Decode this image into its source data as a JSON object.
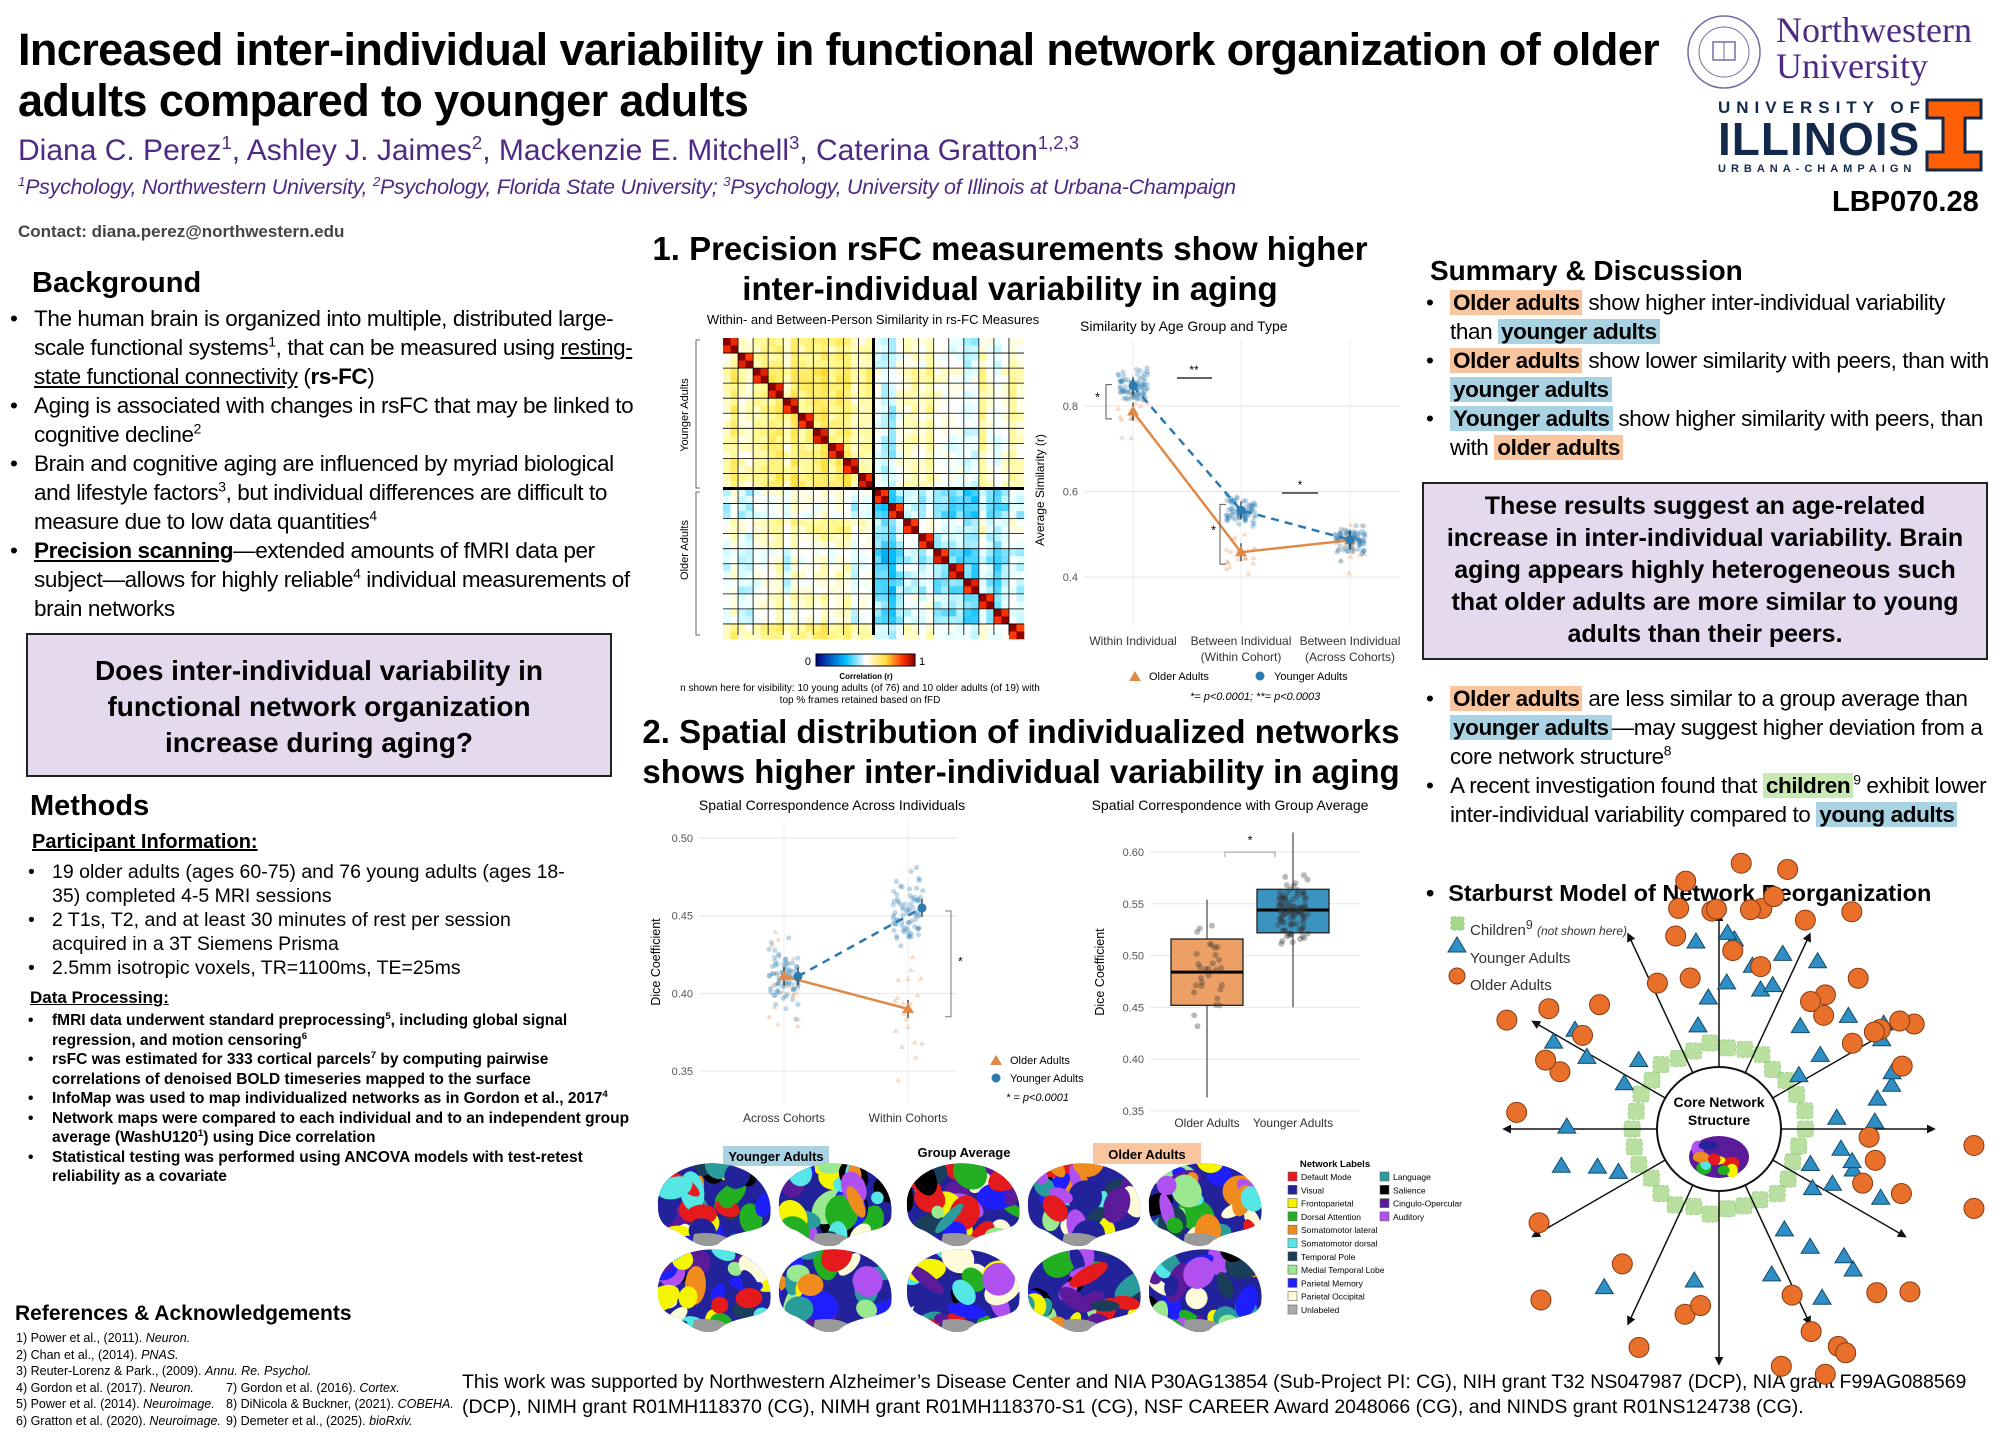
{
  "header": {
    "title_lines": [
      "Increased inter-individual variability in functional network organization of older",
      "adults compared to younger adults"
    ],
    "authors": [
      {
        "t": "Diana C. Perez"
      },
      {
        "t": "1",
        "s": "sup"
      },
      {
        "t": ", Ashley J. Jaimes"
      },
      {
        "t": "2",
        "s": "sup"
      },
      {
        "t": ", Mackenzie E. Mitchell"
      },
      {
        "t": "3",
        "s": "sup"
      },
      {
        "t": ", Caterina Gratton"
      },
      {
        "t": "1,2,3",
        "s": "sup"
      }
    ],
    "affiliations": [
      {
        "t": "1",
        "s": "sup"
      },
      {
        "t": "Psychology, Northwestern University, "
      },
      {
        "t": "2",
        "s": "sup"
      },
      {
        "t": "Psychology, Florida State University; "
      },
      {
        "t": "3",
        "s": "sup"
      },
      {
        "t": "Psychology, University of Illinois at Urbana-Champaign"
      }
    ],
    "contact": "Contact: diana.perez@northwestern.edu",
    "poster_id": "LBP070.28",
    "logos": {
      "northwestern": "Northwestern University",
      "northwestern_line1": "Northwestern",
      "northwestern_line2": "University",
      "illinois_top": "UNIVERSITY OF",
      "illinois_main": "ILLINOIS",
      "illinois_bottom": "URBANA-CHAMPAIGN",
      "colors": {
        "northwestern": "#4e2a84",
        "illinois_blue": "#13294b",
        "illinois_orange": "#ff5f05"
      }
    }
  },
  "background": {
    "heading": "Background",
    "bullets": [
      [
        {
          "t": "The human brain is organized into multiple, distributed large-scale functional systems"
        },
        {
          "t": "1",
          "s": "sup"
        },
        {
          "t": ", that can be measured using "
        },
        {
          "t": "resting-state functional connectivity",
          "s": "u"
        },
        {
          "t": " ("
        },
        {
          "t": "rs-FC",
          "s": "b"
        },
        {
          "t": ")"
        }
      ],
      [
        {
          "t": "Aging is associated with changes in rsFC that may be linked to cognitive decline"
        },
        {
          "t": "2",
          "s": "sup"
        }
      ],
      [
        {
          "t": "Brain and cognitive aging are influenced by myriad biological and lifestyle factors"
        },
        {
          "t": "3",
          "s": "sup"
        },
        {
          "t": ", but individual differences are difficult to measure due to low data quantities"
        },
        {
          "t": "4",
          "s": "sup"
        }
      ],
      [
        {
          "t": "Precision scanning",
          "s": "bu"
        },
        {
          "t": "—extended amounts of fMRI data per subject—allows for highly reliable"
        },
        {
          "t": "4",
          "s": "sup"
        },
        {
          "t": " individual measurements of brain networks"
        }
      ]
    ],
    "question": "Does inter-individual variability in functional network organization increase during aging?"
  },
  "methods": {
    "heading": "Methods",
    "participant_heading": "Participant Information:",
    "participant_bullets": [
      [
        {
          "t": "19 older adults (ages 60-75) and 76 young adults (ages 18-35) completed 4-5 MRI sessions"
        }
      ],
      [
        {
          "t": "2 T1s, T2, and at least 30 minutes of rest per session acquired in a 3T Siemens Prisma"
        }
      ],
      [
        {
          "t": "2.5mm isotropic voxels, TR=1100ms, TE=25ms"
        }
      ]
    ],
    "processing_heading": "Data Processing:",
    "processing_bullets": [
      [
        {
          "t": "fMRI data underwent standard preprocessing"
        },
        {
          "t": "5",
          "s": "sup"
        },
        {
          "t": ", including global signal regression, and motion censoring"
        },
        {
          "t": "6",
          "s": "sup"
        }
      ],
      [
        {
          "t": "rsFC was estimated for 333 cortical parcels"
        },
        {
          "t": "7",
          "s": "sup"
        },
        {
          "t": " by computing pairwise correlations of denoised BOLD timeseries mapped to the surface"
        }
      ],
      [
        {
          "t": "InfoMap was used to map individualized networks as in Gordon et al., 2017"
        },
        {
          "t": "4",
          "s": "sup"
        }
      ],
      [
        {
          "t": "Network maps were compared to each individual and to an independent group average (WashU120"
        },
        {
          "t": "1",
          "s": "sup"
        },
        {
          "t": ") using Dice correlation"
        }
      ],
      [
        {
          "t": "Statistical testing was performed using ANCOVA models with test-retest reliability as a covariate"
        }
      ]
    ]
  },
  "references": {
    "heading": "References & Acknowledgements",
    "col1": [
      [
        {
          "t": "1) Power et al., (2011). "
        },
        {
          "t": "Neuron.",
          "s": "i"
        }
      ],
      [
        {
          "t": "2) Chan et al., (2014). "
        },
        {
          "t": "PNAS.",
          "s": "i"
        }
      ],
      [
        {
          "t": "3) Reuter-Lorenz & Park., (2009). "
        },
        {
          "t": "Annu. Re. Psychol.",
          "s": "i"
        }
      ],
      [
        {
          "t": "4) Gordon et al. (2017). "
        },
        {
          "t": "Neuron.",
          "s": "i"
        }
      ],
      [
        {
          "t": "5) Power et al. (2014). "
        },
        {
          "t": "Neuroimage.",
          "s": "i"
        }
      ],
      [
        {
          "t": "6) Gratton et al. (2020). "
        },
        {
          "t": "Neuroimage.",
          "s": "i"
        }
      ]
    ],
    "col2": [
      [
        {
          "t": "7) Gordon et al. (2016). "
        },
        {
          "t": "Cortex.",
          "s": "i"
        }
      ],
      [
        {
          "t": "8) DiNicola & Buckner, (2021). "
        },
        {
          "t": "COBEHA.",
          "s": "i"
        }
      ],
      [
        {
          "t": "9) Demeter et al., (2025). "
        },
        {
          "t": "bioRxiv.",
          "s": "i"
        }
      ]
    ],
    "acknowledgement": "This work was supported by Northwestern Alzheimer’s Disease Center and NIA P30AG13854 (Sub-Project PI: CG), NIH grant T32 NS047987 (DCP), NIA grant F99AG088569 (DCP), NIMH grant R01MH118370 (CG), NIMH grant R01MH118370-S1 (CG), NSF CAREER Award 2048066 (CG), and NINDS grant R01NS124738 (CG)."
  },
  "section1": {
    "heading": "1. Precision rsFC measurements show higher inter-individual variability in aging",
    "heatmap": {
      "title": "Within- and Between-Person Similarity in rs-FC Measures",
      "group_labels": [
        "Younger Adults",
        "Older Adults"
      ],
      "colorbar_min": "0",
      "colorbar_max": "1",
      "colorbar_label": "Correlation (r)",
      "caption_lines": [
        "n shown here for visibility: 10 young adults (of 76) and 10 older adults (of 19) with",
        "top % frames retained based on fFD"
      ]
    }
  },
  "section2": {
    "heading": "2. Spatial distribution of individualized networks shows higher inter-individual variability in aging",
    "brains": {
      "younger_label": "Younger Adults",
      "group_label": "Group Average",
      "older_label": "Older Adults",
      "legend_title": "Network Labels",
      "networks": [
        {
          "name": "Default Mode",
          "color": "#e41a1c"
        },
        {
          "name": "Visual",
          "color": "#22229a"
        },
        {
          "name": "Frontoparietal",
          "color": "#f5f500"
        },
        {
          "name": "Dorsal Attention",
          "color": "#22b022"
        },
        {
          "name": "Somatomotor lateral",
          "color": "#f08c1e"
        },
        {
          "name": "Somatomotor dorsal",
          "color": "#55e6e6"
        },
        {
          "name": "Temporal Pole",
          "color": "#1a3d5a"
        },
        {
          "name": "Medial Temporal Lobe",
          "color": "#9ae88f"
        },
        {
          "name": "Parietal Memory",
          "color": "#1e1eff"
        },
        {
          "name": "Parietal Occipital",
          "color": "#fdfbd8"
        },
        {
          "name": "Unlabeled",
          "color": "#aaaaaa"
        },
        {
          "name": "Language",
          "color": "#2a9c9c"
        },
        {
          "name": "Salience",
          "color": "#000000"
        },
        {
          "name": "Cingulo-Opercular",
          "color": "#5a1a9a"
        },
        {
          "name": "Auditory",
          "color": "#b050f0"
        }
      ]
    }
  },
  "chart_data": [
    {
      "type": "line",
      "title": "Similarity by Age Group and Type",
      "xlabel": "",
      "ylabel": "Average Similarity (r)",
      "categories": [
        "Within Individual",
        "Between Individual (Within Cohort)",
        "Between Individual (Across Cohorts)"
      ],
      "series": [
        {
          "name": "Older Adults",
          "values": [
            0.787,
            0.458,
            0.486
          ],
          "color": "#e08a4a",
          "marker": "triangle",
          "line": "solid"
        },
        {
          "name": "Younger Adults",
          "values": [
            0.847,
            0.556,
            0.487
          ],
          "color": "#2b7bb0",
          "marker": "circle",
          "line": "dashed"
        }
      ],
      "ylim": [
        0.3,
        0.95
      ],
      "yticks": [
        0.4,
        0.6,
        0.8
      ],
      "grid": true,
      "legend": "bottom",
      "annotations": [
        "*",
        "**",
        "*",
        "*"
      ],
      "note": "*= p<0.0001; **= p<0.0003"
    },
    {
      "type": "line",
      "title": "Spatial Correspondence Across Individuals",
      "xlabel": "",
      "ylabel": "Dice Coefficient",
      "categories": [
        "Across Cohorts",
        "Within Cohorts"
      ],
      "series": [
        {
          "name": "Older Adults",
          "values": [
            0.411,
            0.39
          ],
          "color": "#e08a4a",
          "marker": "triangle",
          "line": "solid"
        },
        {
          "name": "Younger Adults",
          "values": [
            0.411,
            0.455
          ],
          "color": "#2b7bb0",
          "marker": "circle",
          "line": "dashed"
        }
      ],
      "ylim": [
        0.33,
        0.51
      ],
      "yticks": [
        0.35,
        0.4,
        0.45,
        0.5
      ],
      "grid": true,
      "legend": "right",
      "annotations": [
        "*"
      ],
      "note": "* = p<0.0001"
    },
    {
      "type": "box",
      "title": "Spatial Correspondence with Group Average",
      "xlabel": "",
      "ylabel": "Dice Coefficient",
      "categories": [
        "Older Adults",
        "Younger Adults"
      ],
      "boxes": [
        {
          "name": "Older Adults",
          "min": 0.363,
          "q1": 0.452,
          "median": 0.484,
          "q3": 0.516,
          "max": 0.554,
          "color": "#eda065"
        },
        {
          "name": "Younger Adults",
          "min": 0.45,
          "q1": 0.522,
          "median": 0.544,
          "q3": 0.564,
          "max": 0.619,
          "color": "#3b93c0"
        }
      ],
      "ylim": [
        0.35,
        0.62
      ],
      "yticks": [
        0.35,
        0.4,
        0.45,
        0.5,
        0.55,
        0.6
      ],
      "grid": true,
      "annotations": [
        "*"
      ]
    }
  ],
  "summary": {
    "heading": "Summary & Discussion",
    "bullets": [
      [
        {
          "t": "Older adults",
          "s": "hlo"
        },
        {
          "t": " show higher inter-individual variability than "
        },
        {
          "t": "younger adults",
          "s": "hly"
        }
      ],
      [
        {
          "t": "Older adults",
          "s": "hlo"
        },
        {
          "t": " show lower similarity with peers, than with "
        },
        {
          "t": "younger adults",
          "s": "hly"
        }
      ],
      [
        {
          "t": "Younger adults",
          "s": "hly"
        },
        {
          "t": " show higher similarity with peers, than with "
        },
        {
          "t": "older adults",
          "s": "hlo"
        }
      ]
    ],
    "conclusion": "These results suggest an age-related increase in inter-individual variability. Brain aging appears highly heterogeneous such that older adults are more similar to young adults than their peers.",
    "bullets2": [
      [
        {
          "t": "Older adults",
          "s": "hlo"
        },
        {
          "t": " are less similar to a group average than "
        },
        {
          "t": "younger adults",
          "s": "hly"
        },
        {
          "t": "—may suggest higher deviation from a core network structure"
        },
        {
          "t": "8",
          "s": "sup"
        }
      ],
      [
        {
          "t": "A recent investigation found that "
        },
        {
          "t": "children",
          "s": "hlg"
        },
        {
          "t": "9",
          "s": "sup"
        },
        {
          "t": " exhibit lower inter-individual variability compared to "
        },
        {
          "t": "young adults",
          "s": "hly"
        }
      ]
    ],
    "starburst": {
      "heading": "Starburst Model of Network Reorganization",
      "legend": {
        "children": "Children",
        "children_sup": "9",
        "children_note": "(not shown here)",
        "younger": "Younger Adults",
        "older": "Older Adults"
      },
      "core_label_1": "Core Network",
      "core_label_2": "Structure",
      "colors": {
        "younger": "#2f8fc4",
        "older": "#e8702a",
        "children": "#a8d88a"
      }
    }
  }
}
